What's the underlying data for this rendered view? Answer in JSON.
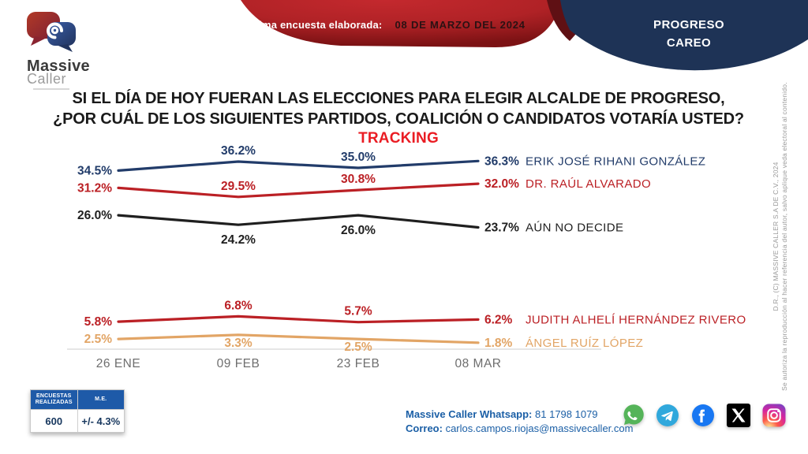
{
  "header": {
    "banner_label": "Última encuesta elaborada:",
    "banner_date": "08 DE MARZO DEL 2024",
    "region_line1": "PROGRESO",
    "region_line2": "CAREO",
    "logo_line1": "Massive",
    "logo_line2": "Caller"
  },
  "title": {
    "line1": "SI EL DÍA DE HOY FUERAN LAS ELECCIONES PARA ELEGIR ALCALDE DE PROGRESO,",
    "line2": "¿POR CUÁL DE LOS SIGUIENTES PARTIDOS, COALICIÓN O CANDIDATOS VOTARÍA USTED?",
    "tracking": "TRACKING"
  },
  "chart_data": {
    "type": "line",
    "title": "TRACKING",
    "categories": [
      "26 ENE",
      "09 FEB",
      "23 FEB",
      "08 MAR"
    ],
    "value_suffix": "%",
    "grid": false,
    "legend_position": "right-of-line-end",
    "series": [
      {
        "name": "ERIK JOSÉ RIHANI GONZÁLEZ",
        "color": "#223c6a",
        "values": [
          34.5,
          36.2,
          35.0,
          36.3
        ],
        "label_positions": [
          "left",
          "above",
          "above",
          "right"
        ]
      },
      {
        "name": "DR. RAÚL ALVARADO",
        "color": "#bb2025",
        "values": [
          31.2,
          29.5,
          30.8,
          32.0
        ],
        "label_positions": [
          "left",
          "above",
          "above",
          "right"
        ]
      },
      {
        "name": "AÚN NO DECIDE",
        "color": "#1f1f1f",
        "values": [
          26.0,
          24.2,
          26.0,
          23.7
        ],
        "label_positions": [
          "left",
          "below",
          "below",
          "right"
        ]
      },
      {
        "name": "JUDITH ALHELÍ HERNÁNDEZ RIVERO",
        "color": "#bb2025",
        "values": [
          5.8,
          6.8,
          5.7,
          6.2
        ],
        "label_positions": [
          "left",
          "above",
          "above",
          "right"
        ]
      },
      {
        "name": "ÁNGEL RUÍZ LÓPEZ",
        "color": "#e2a566",
        "values": [
          2.5,
          3.3,
          2.5,
          1.8
        ],
        "label_positions": [
          "left",
          "below",
          "below",
          "right"
        ]
      }
    ]
  },
  "stats_table": {
    "headers": [
      "ENCUESTAS REALIZADAS",
      "M.E."
    ],
    "row": [
      "600",
      "+/- 4.3%"
    ]
  },
  "contact": {
    "whatsapp_label": "Massive Caller Whatsapp:",
    "whatsapp_number": "81 1798 1079",
    "email_label": "Correo:",
    "email": "carlos.campos.riojas@massivecaller.com"
  },
  "social": {
    "icons": [
      "whatsapp-icon",
      "telegram-icon",
      "facebook-icon",
      "x-icon",
      "instagram-icon"
    ]
  },
  "copyright": {
    "line1": "D.R., (C) MASSIVE CALLER S.A DE C.V., 2024",
    "line2": "Se autoriza la reproducción al hacer referencia del autor, salvo aplique veda electoral al contenido."
  },
  "colors": {
    "banner_red": "#b02226",
    "banner_red_dark": "#7c1214",
    "navy": "#1e3356",
    "tracking_red": "#ea1c23",
    "table_header_blue": "#1e5aa8",
    "contact_blue": "#1b5fa6"
  }
}
